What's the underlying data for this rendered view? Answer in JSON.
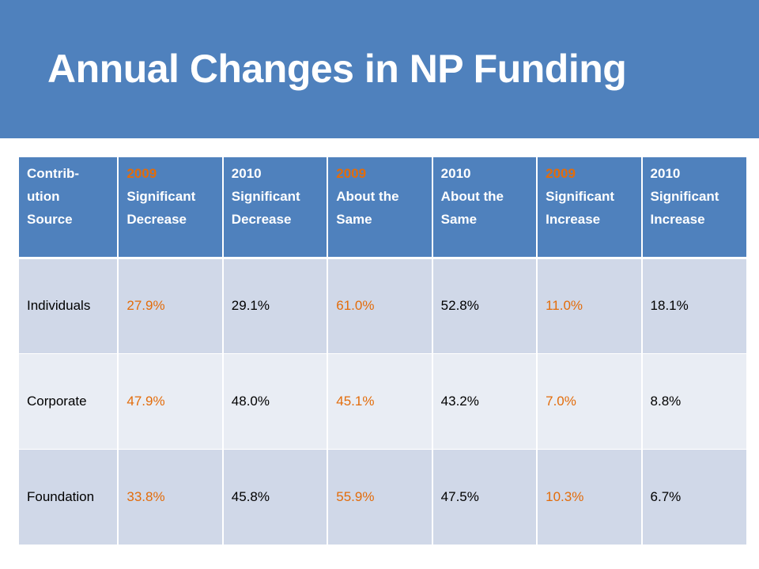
{
  "slide": {
    "title": "Annual Changes in NP Funding"
  },
  "colors": {
    "banner": "#4f81bd",
    "header_bg": "#4f81bd",
    "row_odd_bg": "#d0d8e8",
    "row_even_bg": "#e9edf4",
    "accent_2009": "#e36c0a"
  },
  "table": {
    "headers": [
      {
        "lines": [
          "Contrib-",
          "ution",
          "Source"
        ],
        "year_highlight": false
      },
      {
        "year": "2009",
        "lines": [
          "Significant",
          "Decrease"
        ],
        "year_highlight": true
      },
      {
        "year": "2010",
        "lines": [
          "Significant",
          "Decrease"
        ],
        "year_highlight": false
      },
      {
        "year": "2009",
        "lines": [
          "About the",
          "Same"
        ],
        "year_highlight": true
      },
      {
        "year": "2010",
        "lines": [
          "About the",
          "Same"
        ],
        "year_highlight": false
      },
      {
        "year": "2009",
        "lines": [
          "Significant",
          "Increase"
        ],
        "year_highlight": true
      },
      {
        "year": "2010",
        "lines": [
          "Significant",
          "Increase"
        ],
        "year_highlight": false
      }
    ],
    "rows": [
      {
        "source": "Individuals",
        "values": [
          "27.9%",
          "29.1%",
          "61.0%",
          "52.8%",
          "11.0%",
          "18.1%"
        ]
      },
      {
        "source": "Corporate",
        "values": [
          "47.9%",
          "48.0%",
          "45.1%",
          "43.2%",
          "7.0%",
          "8.8%"
        ]
      },
      {
        "source": "Foundation",
        "values": [
          "33.8%",
          "45.8%",
          "55.9%",
          "47.5%",
          "10.3%",
          "6.7%"
        ]
      }
    ]
  }
}
